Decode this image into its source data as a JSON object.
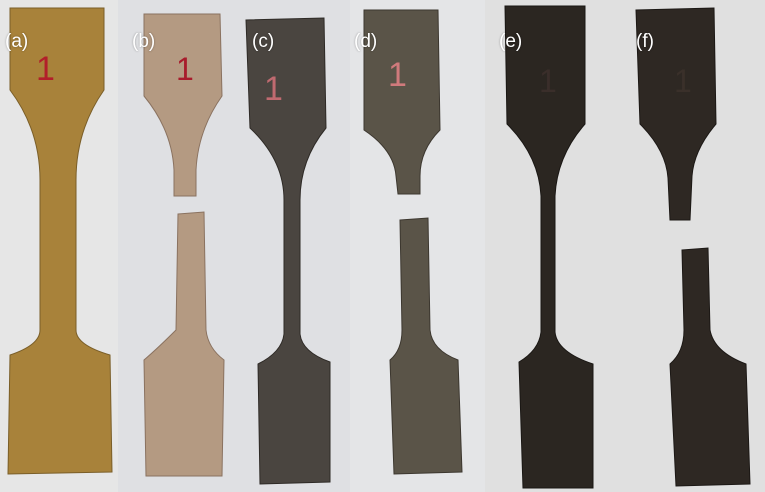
{
  "panels": [
    {
      "label": "(a)",
      "state": "unbroken",
      "color": "#a8823a",
      "mark": "1",
      "mark_color": "#b21f2a"
    },
    {
      "label": "(b)",
      "state": "fractured",
      "color": "#b49a82",
      "mark": "1",
      "mark_color": "#a81c2c"
    },
    {
      "label": "(c)",
      "state": "unbroken",
      "color": "#4a4540",
      "mark": "1",
      "mark_color": "#c06a70"
    },
    {
      "label": "(d)",
      "state": "fractured",
      "color": "#5a5448",
      "mark": "1",
      "mark_color": "#d07a7c"
    },
    {
      "label": "(e)",
      "state": "unbroken",
      "color": "#2b2621",
      "mark": "1",
      "mark_color": "#3a2e2a"
    },
    {
      "label": "(f)",
      "state": "fractured",
      "color": "#2e2823",
      "mark": "1",
      "mark_color": "#3a302a"
    }
  ],
  "background": {
    "left": "#e3e3e3",
    "middle": "#d6d8dc",
    "right": "#dcdcdc"
  }
}
